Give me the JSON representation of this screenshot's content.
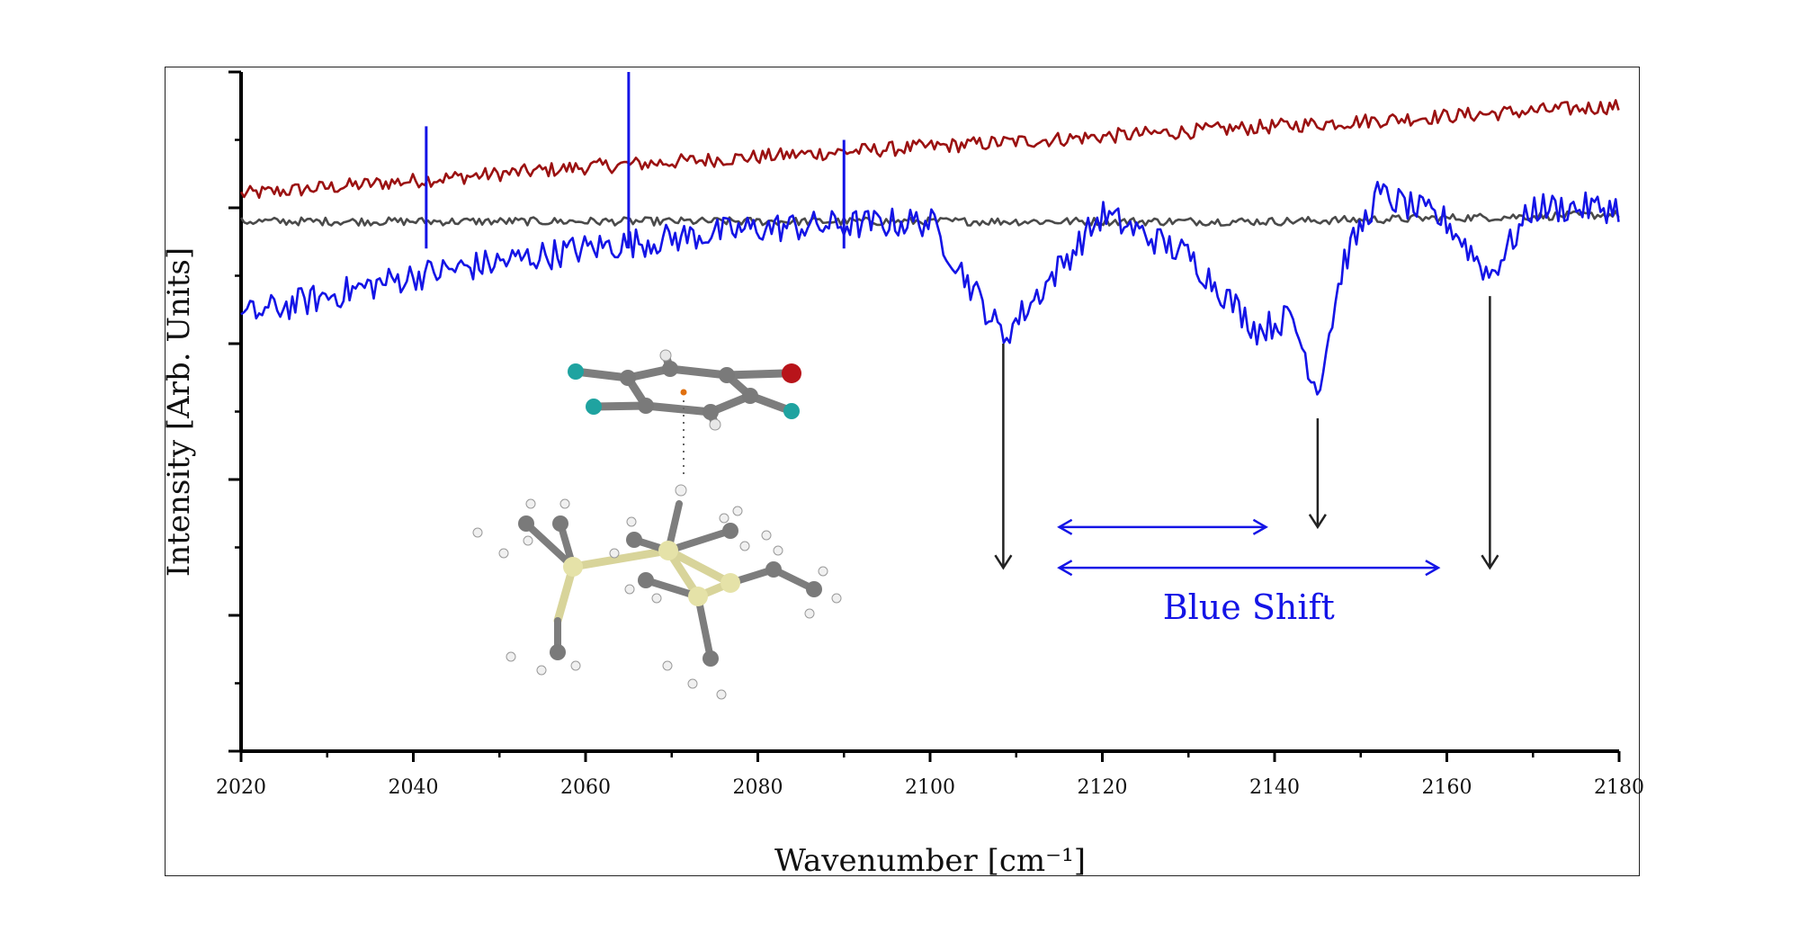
{
  "chart_data": {
    "type": "line",
    "xlabel": "Wavenumber [cm⁻¹]",
    "ylabel": "Intensity [Arb. Units]",
    "xlim": [
      2020,
      2180
    ],
    "x_ticks": [
      "2020",
      "2040",
      "2060",
      "2080",
      "2100",
      "2120",
      "2140",
      "2160",
      "2180"
    ],
    "y_tick_labels": "none",
    "grid": false,
    "legend": "none",
    "annotation": "Blue Shift",
    "series": [
      {
        "color": "#9b1111",
        "x": [
          2020,
          2060,
          2100,
          2140,
          2180
        ],
        "values": [
          0.82,
          0.86,
          0.89,
          0.92,
          0.95
        ]
      },
      {
        "color": "#4a4a4a",
        "x": [
          2020,
          2060,
          2100,
          2140,
          2180
        ],
        "values": [
          0.78,
          0.78,
          0.78,
          0.78,
          0.79
        ]
      },
      {
        "color": "#1414e6",
        "x": [
          2020,
          2040,
          2060,
          2080,
          2100,
          2108.5,
          2120,
          2130,
          2138,
          2142,
          2145,
          2148,
          2152,
          2160,
          2165,
          2170,
          2180
        ],
        "values": [
          0.64,
          0.7,
          0.74,
          0.77,
          0.78,
          0.61,
          0.79,
          0.73,
          0.62,
          0.64,
          0.53,
          0.72,
          0.82,
          0.78,
          0.7,
          0.8,
          0.8
        ]
      }
    ],
    "spikes": [
      {
        "x": 2041.5,
        "value": 0.92,
        "color": "#1414e6"
      },
      {
        "x": 2065,
        "value": 1.0,
        "color": "#1414e6"
      },
      {
        "x": 2090,
        "value": 0.9,
        "color": "#1414e6"
      }
    ],
    "arrows_down": [
      {
        "x": 2108.5,
        "from": 0.6,
        "to": 0.27
      },
      {
        "x": 2145,
        "from": 0.49,
        "to": 0.33
      },
      {
        "x": 2165,
        "from": 0.67,
        "to": 0.27
      }
    ],
    "double_arrows": [
      {
        "from": 2115,
        "to": 2139,
        "y": 0.33
      },
      {
        "from": 2115,
        "to": 2159,
        "y": 0.27
      }
    ]
  },
  "molecule_inset": {
    "description_icon": "molecular-structure-icon"
  }
}
